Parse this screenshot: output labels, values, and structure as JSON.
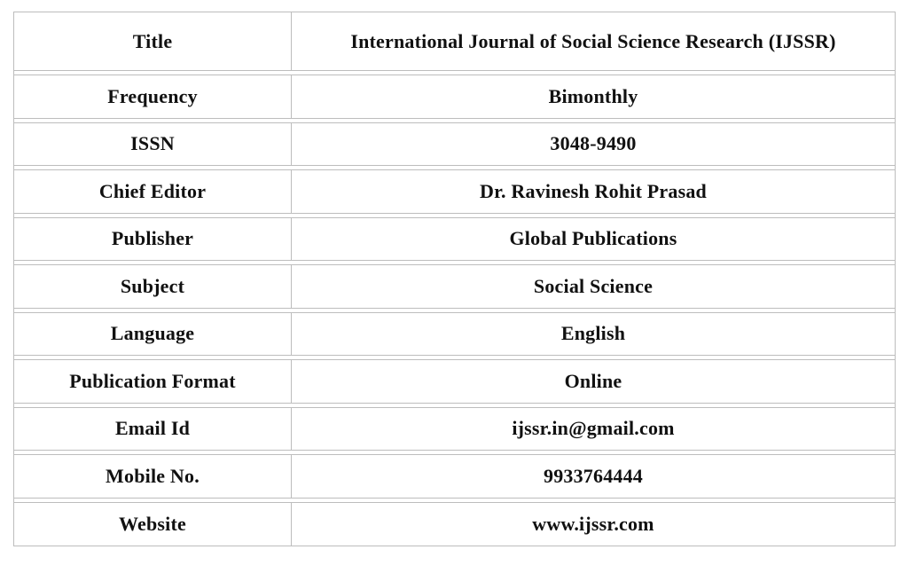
{
  "rows": [
    {
      "label": "Title",
      "value": "International Journal of Social Science Research (IJSSR)"
    },
    {
      "label": "Frequency",
      "value": "Bimonthly"
    },
    {
      "label": "ISSN",
      "value": "3048-9490"
    },
    {
      "label": "Chief Editor",
      "value": "Dr. Ravinesh Rohit Prasad"
    },
    {
      "label": "Publisher",
      "value": "Global Publications"
    },
    {
      "label": "Subject",
      "value": "Social Science"
    },
    {
      "label": "Language",
      "value": "English"
    },
    {
      "label": "Publication Format",
      "value": "Online"
    },
    {
      "label": "Email Id",
      "value": "ijssr.in@gmail.com"
    },
    {
      "label": "Mobile No.",
      "value": "9933764444"
    },
    {
      "label": "Website",
      "value": "www.ijssr.com"
    }
  ]
}
